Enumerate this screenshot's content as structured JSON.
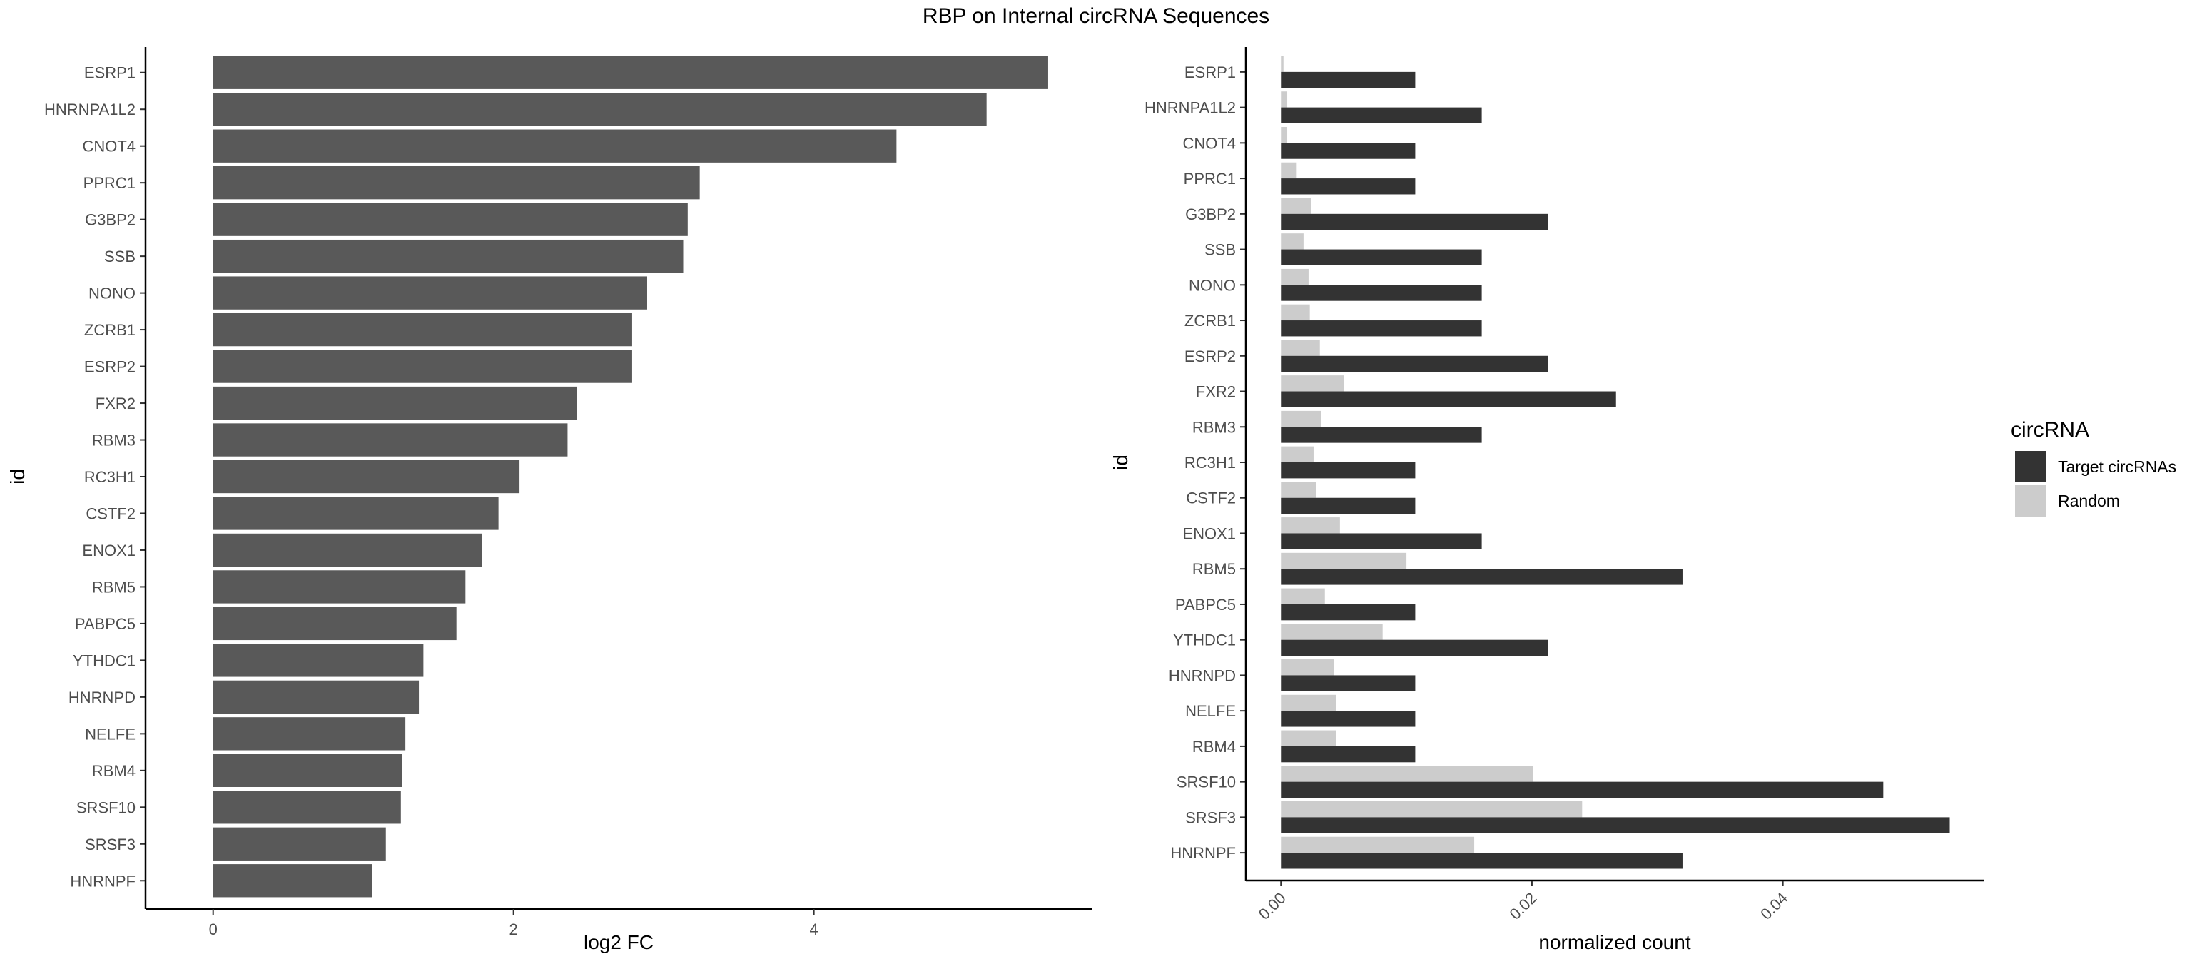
{
  "title": "RBP on Internal circRNA Sequences",
  "chart_data": [
    {
      "type": "bar",
      "orientation": "horizontal",
      "xlabel": "log2 FC",
      "ylabel": "id",
      "xlim": [
        -0.45,
        5.85
      ],
      "xticks": [
        "0",
        "2",
        "4"
      ],
      "categories": [
        "ESRP1",
        "HNRNPA1L2",
        "CNOT4",
        "PPRC1",
        "G3BP2",
        "SSB",
        "NONO",
        "ZCRB1",
        "ESRP2",
        "FXR2",
        "RBM3",
        "RC3H1",
        "CSTF2",
        "ENOX1",
        "RBM5",
        "PABPC5",
        "YTHDC1",
        "HNRNPD",
        "NELFE",
        "RBM4",
        "SRSF10",
        "SRSF3",
        "HNRNPF"
      ],
      "values": [
        5.56,
        5.15,
        4.55,
        3.24,
        3.16,
        3.13,
        2.89,
        2.79,
        2.79,
        2.42,
        2.36,
        2.04,
        1.9,
        1.79,
        1.68,
        1.62,
        1.4,
        1.37,
        1.28,
        1.26,
        1.25,
        1.15,
        1.06
      ],
      "color": "#595959",
      "grid": false
    },
    {
      "type": "bar",
      "orientation": "horizontal",
      "grouped": true,
      "xlabel": "normalized count",
      "ylabel": "id",
      "xlim": [
        -0.0028,
        0.056
      ],
      "xticks": [
        "0.00",
        "0.02",
        "0.04"
      ],
      "categories": [
        "ESRP1",
        "HNRNPA1L2",
        "CNOT4",
        "PPRC1",
        "G3BP2",
        "SSB",
        "NONO",
        "ZCRB1",
        "ESRP2",
        "FXR2",
        "RBM3",
        "RC3H1",
        "CSTF2",
        "ENOX1",
        "RBM5",
        "PABPC5",
        "YTHDC1",
        "HNRNPD",
        "NELFE",
        "RBM4",
        "SRSF10",
        "SRSF3",
        "HNRNPF"
      ],
      "series": [
        {
          "name": "Target circRNAs",
          "color": "#333333",
          "values": [
            0.0107,
            0.016,
            0.0107,
            0.0107,
            0.0213,
            0.016,
            0.016,
            0.016,
            0.0213,
            0.0267,
            0.016,
            0.0107,
            0.0107,
            0.016,
            0.032,
            0.0107,
            0.0213,
            0.0107,
            0.0107,
            0.0107,
            0.048,
            0.0533,
            0.032
          ]
        },
        {
          "name": "Random",
          "color": "#cccccc",
          "values": [
            0.0002,
            0.0005,
            0.0005,
            0.0012,
            0.0024,
            0.0018,
            0.0022,
            0.0023,
            0.0031,
            0.005,
            0.0032,
            0.0026,
            0.0028,
            0.0047,
            0.01,
            0.0035,
            0.0081,
            0.0042,
            0.0044,
            0.0044,
            0.0201,
            0.024,
            0.0154
          ]
        }
      ],
      "legend": {
        "title": "circRNA",
        "placement": "right"
      },
      "grid": false
    }
  ]
}
